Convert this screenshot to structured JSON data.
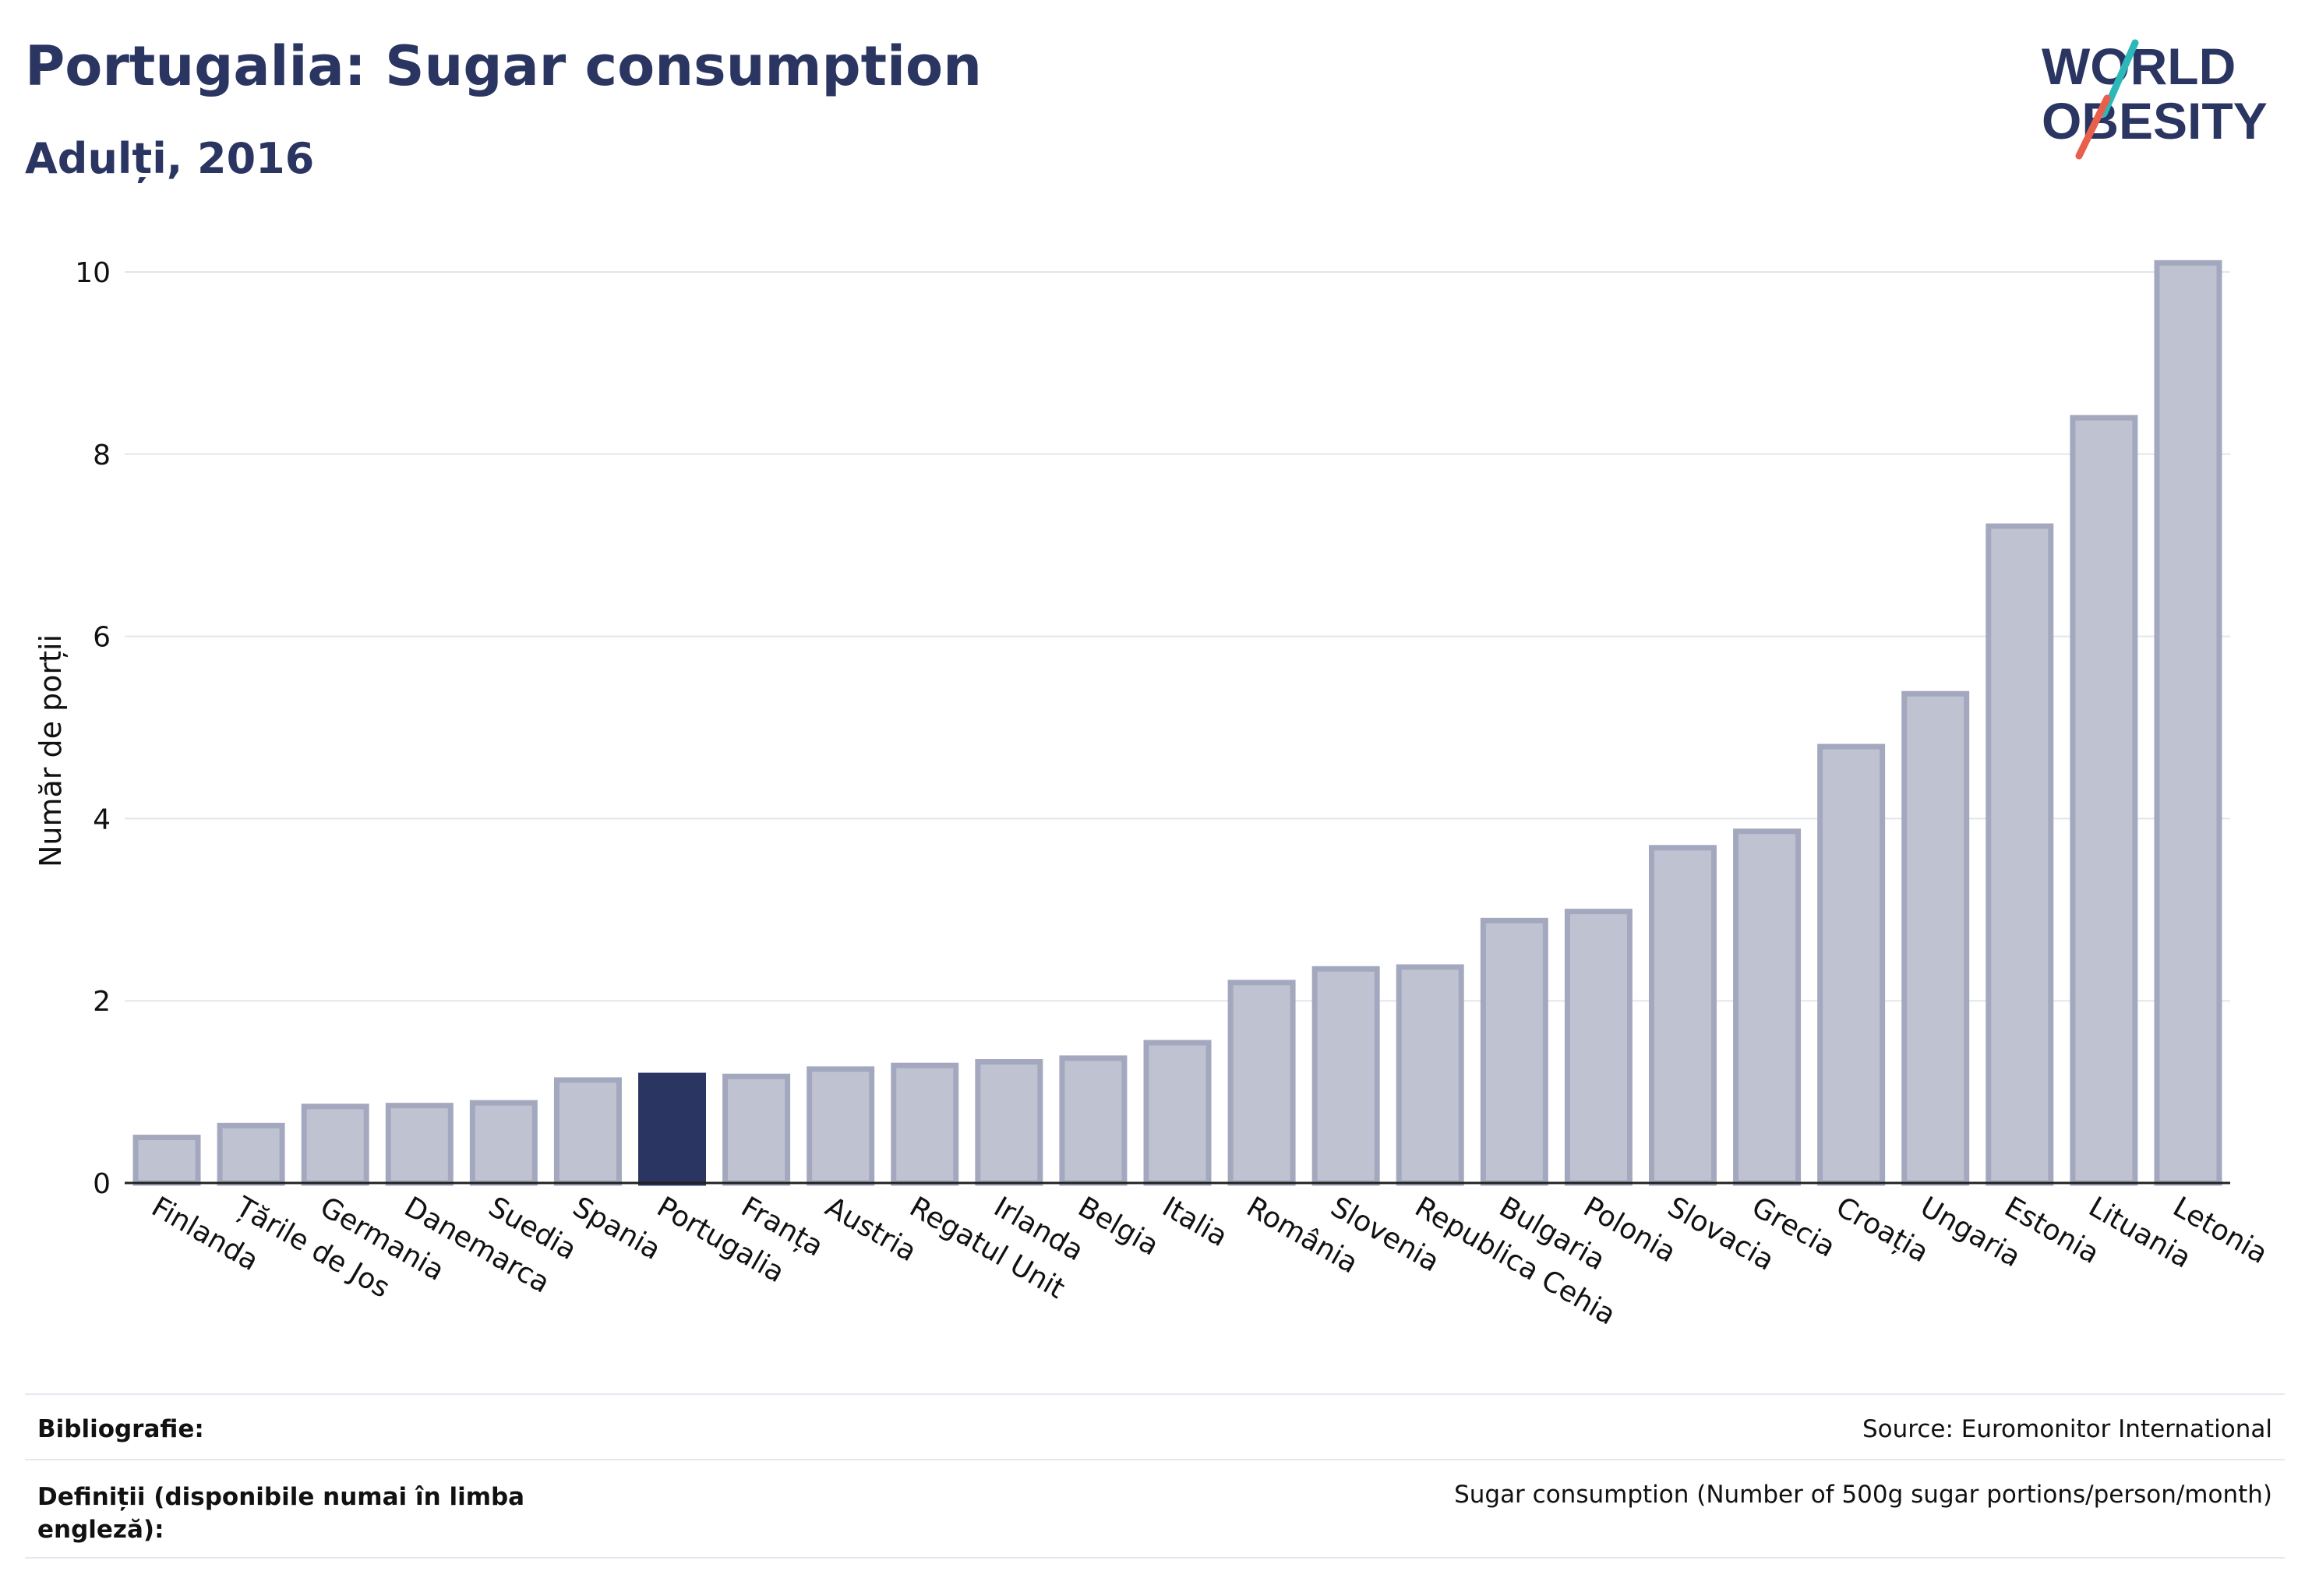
{
  "header": {
    "title": "Portugalia: Sugar consumption",
    "subtitle": "Adulți, 2016"
  },
  "logo": {
    "line1": "WORLD",
    "line2": "OBESITY"
  },
  "colors": {
    "highlight": "#2b3562",
    "bar_fill": "#bfc3d1",
    "bar_stroke": "#a3a8bf",
    "grid": "#e3e5ec",
    "text": "#2a3561",
    "logo_teal": "#2cb8b8",
    "logo_red": "#e8604c"
  },
  "chart_data": {
    "type": "bar",
    "categories": [
      "Finlanda",
      "Țările de Jos",
      "Germania",
      "Danemarca",
      "Suedia",
      "Spania",
      "Portugalia",
      "Franța",
      "Austria",
      "Regatul Unit",
      "Irlanda",
      "Belgia",
      "Italia",
      "România",
      "Slovenia",
      "Republica Cehia",
      "Bulgaria",
      "Polonia",
      "Slovacia",
      "Grecia",
      "Croația",
      "Ungaria",
      "Estonia",
      "Lituania",
      "Letonia"
    ],
    "values": [
      0.5,
      0.63,
      0.84,
      0.85,
      0.88,
      1.13,
      1.18,
      1.17,
      1.25,
      1.29,
      1.33,
      1.37,
      1.54,
      2.2,
      2.35,
      2.37,
      2.88,
      2.98,
      3.68,
      3.86,
      4.79,
      5.37,
      7.21,
      8.4,
      10.1
    ],
    "highlight": "Portugalia",
    "ylabel": "Număr de porții",
    "xlabel": "",
    "yticks": [
      0,
      2,
      4,
      6,
      8,
      10
    ],
    "ylim": [
      0,
      10.5
    ],
    "grid": true
  },
  "footer": {
    "bibliography_label": "Bibliografie:",
    "bibliography_value": "Source: Euromonitor International",
    "definitions_label_line1": "Definiții (disponibile numai în limba",
    "definitions_label_line2": "engleză):",
    "definitions_value": "Sugar consumption (Number of 500g sugar portions/person/month)"
  }
}
